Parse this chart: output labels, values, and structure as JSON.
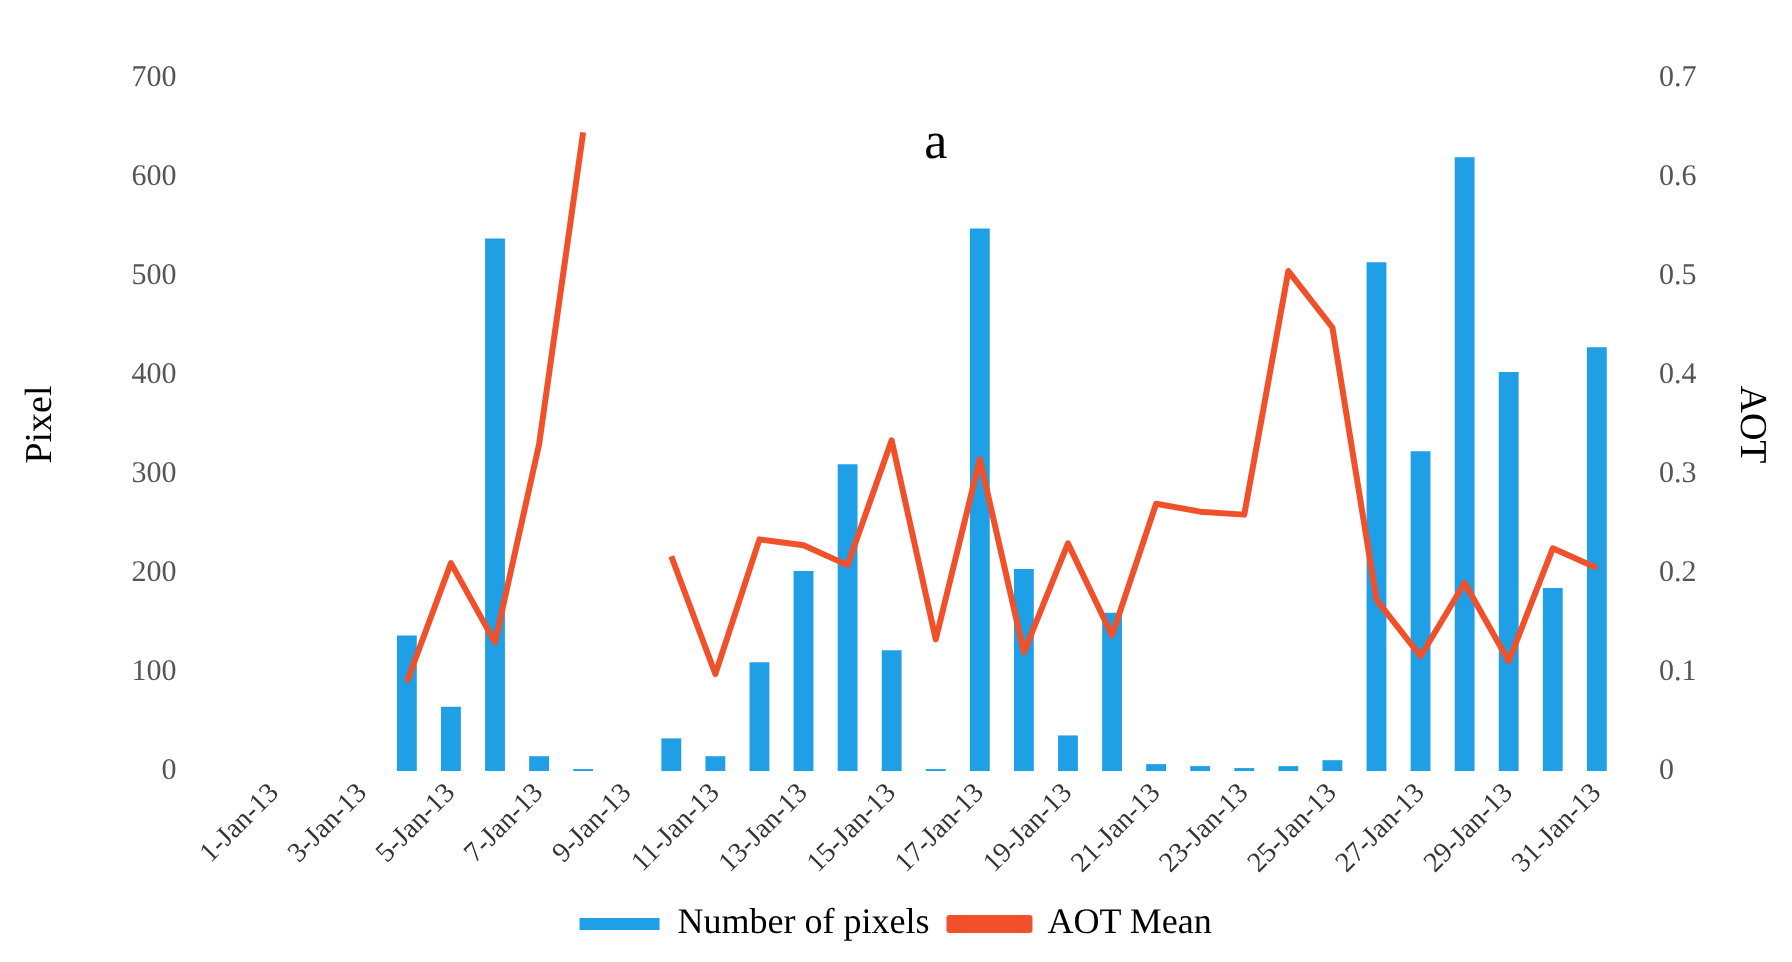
{
  "chart_data": {
    "type": "bar",
    "title": "a",
    "ylabel": "Pixel",
    "y2label": "AOT",
    "categories": [
      "1-Jan-13",
      null,
      "3-Jan-13",
      null,
      "5-Jan-13",
      null,
      "7-Jan-13",
      null,
      "9-Jan-13",
      null,
      "11-Jan-13",
      null,
      "13-Jan-13",
      null,
      "15-Jan-13",
      null,
      "17-Jan-13",
      null,
      "19-Jan-13",
      null,
      "21-Jan-13",
      null,
      "23-Jan-13",
      null,
      "25-Jan-13",
      null,
      "27-Jan-13",
      null,
      "29-Jan-13",
      null,
      "31-Jan-13"
    ],
    "series": [
      {
        "name": "Number of pixels",
        "color": "#1e9fe6",
        "values": [
          0,
          0,
          0,
          137,
          65,
          538,
          15,
          2,
          0,
          33,
          15,
          110,
          202,
          310,
          122,
          2,
          548,
          204,
          36,
          160,
          7,
          5,
          3,
          5,
          11,
          514,
          323,
          620,
          403,
          185,
          428
        ]
      },
      {
        "name": "AOT Mean",
        "type": "line",
        "axis": "y2",
        "color": "#f0502a",
        "values": [
          null,
          null,
          null,
          0.09,
          0.21,
          0.13,
          0.33,
          0.645,
          null,
          0.217,
          0.098,
          0.234,
          0.228,
          0.208,
          0.334,
          0.133,
          0.315,
          0.12,
          0.23,
          0.137,
          0.27,
          0.262,
          0.259,
          0.505,
          0.448,
          0.173,
          0.116,
          0.19,
          0.111,
          0.225,
          0.205
        ]
      }
    ],
    "ylim": [
      0,
      700
    ],
    "yticks": [
      0,
      100,
      200,
      300,
      400,
      500,
      600,
      700
    ],
    "y2lim": [
      0,
      0.7
    ],
    "y2ticks": [
      0,
      0.1,
      0.2,
      0.3,
      0.4,
      0.5,
      0.6,
      0.7
    ],
    "grid": false,
    "legend": "bottom",
    "marker": "none",
    "line_style": "solid"
  }
}
